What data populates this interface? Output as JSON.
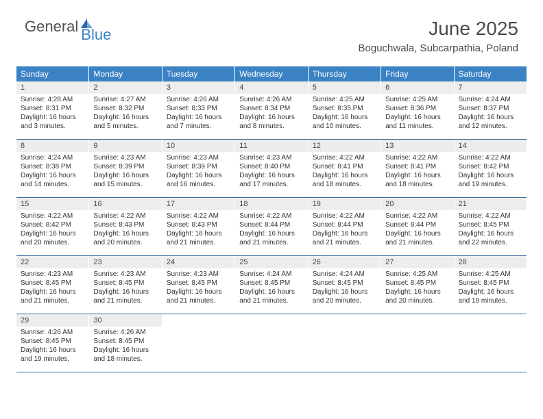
{
  "brand": {
    "part1": "General",
    "part2": "Blue"
  },
  "title": "June 2025",
  "location": "Boguchwala, Subcarpathia, Poland",
  "colors": {
    "header_bg": "#3a82c4",
    "header_fg": "#ffffff",
    "daynum_bg": "#ededed",
    "text": "#333333",
    "rule": "#3a6a9a"
  },
  "weekdays": [
    "Sunday",
    "Monday",
    "Tuesday",
    "Wednesday",
    "Thursday",
    "Friday",
    "Saturday"
  ],
  "weeks": [
    [
      {
        "n": "1",
        "sr": "Sunrise: 4:28 AM",
        "ss": "Sunset: 8:31 PM",
        "dl": "Daylight: 16 hours and 3 minutes."
      },
      {
        "n": "2",
        "sr": "Sunrise: 4:27 AM",
        "ss": "Sunset: 8:32 PM",
        "dl": "Daylight: 16 hours and 5 minutes."
      },
      {
        "n": "3",
        "sr": "Sunrise: 4:26 AM",
        "ss": "Sunset: 8:33 PM",
        "dl": "Daylight: 16 hours and 7 minutes."
      },
      {
        "n": "4",
        "sr": "Sunrise: 4:26 AM",
        "ss": "Sunset: 8:34 PM",
        "dl": "Daylight: 16 hours and 8 minutes."
      },
      {
        "n": "5",
        "sr": "Sunrise: 4:25 AM",
        "ss": "Sunset: 8:35 PM",
        "dl": "Daylight: 16 hours and 10 minutes."
      },
      {
        "n": "6",
        "sr": "Sunrise: 4:25 AM",
        "ss": "Sunset: 8:36 PM",
        "dl": "Daylight: 16 hours and 11 minutes."
      },
      {
        "n": "7",
        "sr": "Sunrise: 4:24 AM",
        "ss": "Sunset: 8:37 PM",
        "dl": "Daylight: 16 hours and 12 minutes."
      }
    ],
    [
      {
        "n": "8",
        "sr": "Sunrise: 4:24 AM",
        "ss": "Sunset: 8:38 PM",
        "dl": "Daylight: 16 hours and 14 minutes."
      },
      {
        "n": "9",
        "sr": "Sunrise: 4:23 AM",
        "ss": "Sunset: 8:39 PM",
        "dl": "Daylight: 16 hours and 15 minutes."
      },
      {
        "n": "10",
        "sr": "Sunrise: 4:23 AM",
        "ss": "Sunset: 8:39 PM",
        "dl": "Daylight: 16 hours and 16 minutes."
      },
      {
        "n": "11",
        "sr": "Sunrise: 4:23 AM",
        "ss": "Sunset: 8:40 PM",
        "dl": "Daylight: 16 hours and 17 minutes."
      },
      {
        "n": "12",
        "sr": "Sunrise: 4:22 AM",
        "ss": "Sunset: 8:41 PM",
        "dl": "Daylight: 16 hours and 18 minutes."
      },
      {
        "n": "13",
        "sr": "Sunrise: 4:22 AM",
        "ss": "Sunset: 8:41 PM",
        "dl": "Daylight: 16 hours and 18 minutes."
      },
      {
        "n": "14",
        "sr": "Sunrise: 4:22 AM",
        "ss": "Sunset: 8:42 PM",
        "dl": "Daylight: 16 hours and 19 minutes."
      }
    ],
    [
      {
        "n": "15",
        "sr": "Sunrise: 4:22 AM",
        "ss": "Sunset: 8:42 PM",
        "dl": "Daylight: 16 hours and 20 minutes."
      },
      {
        "n": "16",
        "sr": "Sunrise: 4:22 AM",
        "ss": "Sunset: 8:43 PM",
        "dl": "Daylight: 16 hours and 20 minutes."
      },
      {
        "n": "17",
        "sr": "Sunrise: 4:22 AM",
        "ss": "Sunset: 8:43 PM",
        "dl": "Daylight: 16 hours and 21 minutes."
      },
      {
        "n": "18",
        "sr": "Sunrise: 4:22 AM",
        "ss": "Sunset: 8:44 PM",
        "dl": "Daylight: 16 hours and 21 minutes."
      },
      {
        "n": "19",
        "sr": "Sunrise: 4:22 AM",
        "ss": "Sunset: 8:44 PM",
        "dl": "Daylight: 16 hours and 21 minutes."
      },
      {
        "n": "20",
        "sr": "Sunrise: 4:22 AM",
        "ss": "Sunset: 8:44 PM",
        "dl": "Daylight: 16 hours and 21 minutes."
      },
      {
        "n": "21",
        "sr": "Sunrise: 4:22 AM",
        "ss": "Sunset: 8:45 PM",
        "dl": "Daylight: 16 hours and 22 minutes."
      }
    ],
    [
      {
        "n": "22",
        "sr": "Sunrise: 4:23 AM",
        "ss": "Sunset: 8:45 PM",
        "dl": "Daylight: 16 hours and 21 minutes."
      },
      {
        "n": "23",
        "sr": "Sunrise: 4:23 AM",
        "ss": "Sunset: 8:45 PM",
        "dl": "Daylight: 16 hours and 21 minutes."
      },
      {
        "n": "24",
        "sr": "Sunrise: 4:23 AM",
        "ss": "Sunset: 8:45 PM",
        "dl": "Daylight: 16 hours and 21 minutes."
      },
      {
        "n": "25",
        "sr": "Sunrise: 4:24 AM",
        "ss": "Sunset: 8:45 PM",
        "dl": "Daylight: 16 hours and 21 minutes."
      },
      {
        "n": "26",
        "sr": "Sunrise: 4:24 AM",
        "ss": "Sunset: 8:45 PM",
        "dl": "Daylight: 16 hours and 20 minutes."
      },
      {
        "n": "27",
        "sr": "Sunrise: 4:25 AM",
        "ss": "Sunset: 8:45 PM",
        "dl": "Daylight: 16 hours and 20 minutes."
      },
      {
        "n": "28",
        "sr": "Sunrise: 4:25 AM",
        "ss": "Sunset: 8:45 PM",
        "dl": "Daylight: 16 hours and 19 minutes."
      }
    ],
    [
      {
        "n": "29",
        "sr": "Sunrise: 4:26 AM",
        "ss": "Sunset: 8:45 PM",
        "dl": "Daylight: 16 hours and 19 minutes."
      },
      {
        "n": "30",
        "sr": "Sunrise: 4:26 AM",
        "ss": "Sunset: 8:45 PM",
        "dl": "Daylight: 16 hours and 18 minutes."
      },
      {
        "empty": true
      },
      {
        "empty": true
      },
      {
        "empty": true
      },
      {
        "empty": true
      },
      {
        "empty": true
      }
    ]
  ]
}
